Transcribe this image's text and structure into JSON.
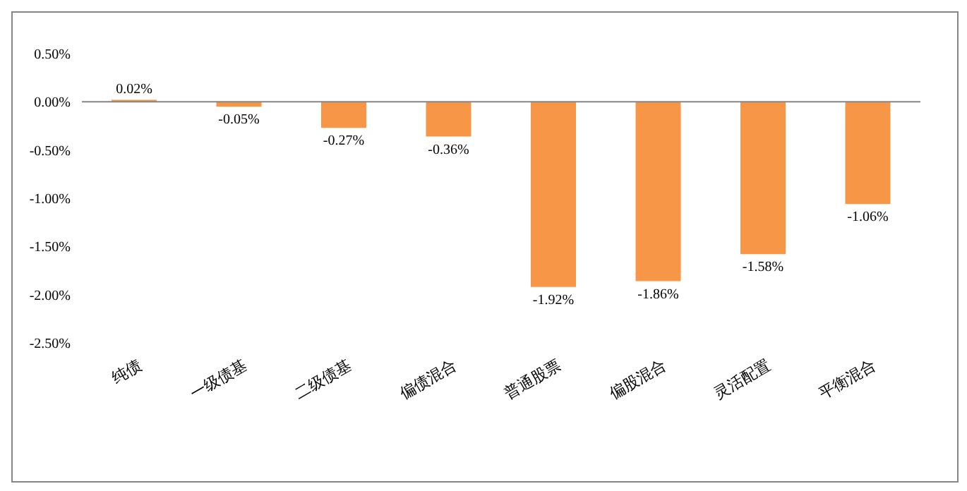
{
  "chart_data": {
    "type": "bar",
    "categories": [
      "纯债",
      "一级债基",
      "二级债基",
      "偏债混合",
      "普通股票",
      "偏股混合",
      "灵活配置",
      "平衡混合"
    ],
    "values": [
      0.02,
      -0.05,
      -0.27,
      -0.36,
      -1.92,
      -1.86,
      -1.58,
      -1.06
    ],
    "value_labels": [
      "0.02%",
      "-0.05%",
      "-0.27%",
      "-0.36%",
      "-1.92%",
      "-1.86%",
      "-1.58%",
      "-1.06%"
    ],
    "color": "#f79646",
    "ylim": [
      -2.5,
      0.5
    ],
    "yticks": [
      {
        "value": 0.5,
        "label": "0.50%"
      },
      {
        "value": 0,
        "label": "0.00%"
      },
      {
        "value": -0.5,
        "label": "-0.50%"
      },
      {
        "value": -1,
        "label": "-1.00%"
      },
      {
        "value": -1.5,
        "label": "-1.50%"
      },
      {
        "value": -2,
        "label": "-2.00%"
      },
      {
        "value": -2.5,
        "label": "-2.50%"
      }
    ],
    "ref_lines": [
      {
        "axis": "y",
        "value": 0,
        "color": "#868686"
      }
    ],
    "grid": false,
    "legend": false
  }
}
